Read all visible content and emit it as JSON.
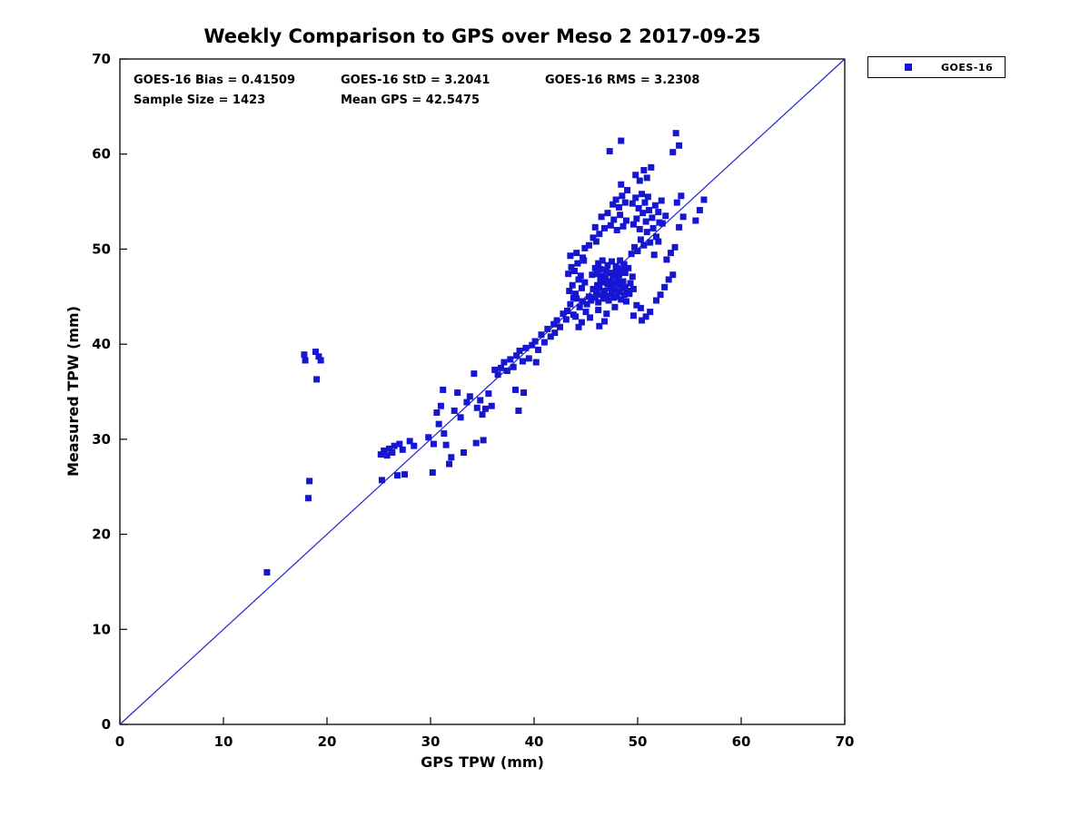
{
  "figure": {
    "background": "#ffffff",
    "text_color": "#000000"
  },
  "chart_data": {
    "type": "scatter",
    "title": "Weekly Comparison to GPS over Meso 2 2017-09-25",
    "xlabel": "GPS TPW (mm)",
    "ylabel": "Measured TPW (mm)",
    "xlim": [
      0,
      70
    ],
    "ylim": [
      0,
      70
    ],
    "xticks": [
      0,
      10,
      20,
      30,
      40,
      50,
      60,
      70
    ],
    "yticks": [
      0,
      10,
      20,
      30,
      40,
      50,
      60,
      70
    ],
    "grid": false,
    "legend": {
      "position": "top-right-outside",
      "entries": [
        {
          "label": "GOES-16",
          "marker": "square",
          "color": "#1616d2"
        }
      ]
    },
    "annotations": {
      "bias": "GOES-16 Bias = 0.41509",
      "std": "GOES-16 StD = 3.2041",
      "rms": "GOES-16 RMS = 3.2308",
      "sample_size": "Sample Size = 1423",
      "mean_gps": "Mean GPS = 42.5475"
    },
    "identity_line": {
      "from": [
        0,
        0
      ],
      "to": [
        70,
        70
      ],
      "color": "#2222cc",
      "width": 1.2
    },
    "marker": {
      "shape": "square",
      "size": 7,
      "color": "#1616d2"
    },
    "series": [
      {
        "name": "GOES-16",
        "points": [
          [
            14.2,
            16.0
          ],
          [
            17.8,
            38.9
          ],
          [
            17.9,
            38.3
          ],
          [
            18.9,
            39.2
          ],
          [
            19.2,
            38.7
          ],
          [
            19.4,
            38.3
          ],
          [
            19.0,
            36.3
          ],
          [
            18.3,
            25.6
          ],
          [
            18.2,
            23.8
          ],
          [
            25.2,
            28.4
          ],
          [
            25.5,
            28.8
          ],
          [
            25.8,
            28.3
          ],
          [
            26.0,
            29.0
          ],
          [
            26.3,
            28.6
          ],
          [
            26.5,
            29.3
          ],
          [
            27.0,
            29.5
          ],
          [
            27.3,
            28.9
          ],
          [
            26.8,
            26.2
          ],
          [
            27.5,
            26.3
          ],
          [
            25.3,
            25.7
          ],
          [
            28.0,
            29.8
          ],
          [
            28.4,
            29.3
          ],
          [
            29.8,
            30.2
          ],
          [
            30.3,
            29.5
          ],
          [
            30.2,
            26.5
          ],
          [
            30.6,
            32.8
          ],
          [
            31.0,
            33.5
          ],
          [
            31.3,
            30.6
          ],
          [
            31.5,
            29.4
          ],
          [
            31.8,
            27.4
          ],
          [
            32.0,
            28.1
          ],
          [
            32.3,
            33.0
          ],
          [
            32.6,
            34.9
          ],
          [
            32.9,
            32.3
          ],
          [
            33.2,
            28.6
          ],
          [
            33.5,
            33.9
          ],
          [
            33.8,
            34.5
          ],
          [
            31.2,
            35.2
          ],
          [
            30.8,
            31.6
          ],
          [
            34.2,
            36.9
          ],
          [
            34.5,
            33.3
          ],
          [
            34.8,
            34.1
          ],
          [
            35.0,
            32.6
          ],
          [
            35.3,
            33.2
          ],
          [
            35.6,
            34.8
          ],
          [
            35.9,
            33.5
          ],
          [
            36.2,
            37.3
          ],
          [
            36.5,
            36.8
          ],
          [
            36.8,
            37.5
          ],
          [
            37.1,
            38.1
          ],
          [
            37.4,
            37.2
          ],
          [
            37.7,
            38.4
          ],
          [
            38.0,
            37.6
          ],
          [
            34.4,
            29.6
          ],
          [
            35.1,
            29.9
          ],
          [
            38.3,
            38.8
          ],
          [
            38.6,
            39.3
          ],
          [
            38.9,
            38.2
          ],
          [
            39.2,
            39.6
          ],
          [
            39.5,
            38.5
          ],
          [
            39.8,
            39.9
          ],
          [
            40.1,
            40.3
          ],
          [
            40.4,
            39.4
          ],
          [
            40.7,
            41.0
          ],
          [
            41.0,
            40.2
          ],
          [
            41.3,
            41.6
          ],
          [
            41.6,
            40.8
          ],
          [
            41.9,
            42.1
          ],
          [
            38.5,
            33.0
          ],
          [
            38.2,
            35.2
          ],
          [
            39.0,
            34.9
          ],
          [
            40.2,
            38.1
          ],
          [
            42.0,
            41.2
          ],
          [
            42.2,
            42.5
          ],
          [
            42.5,
            41.8
          ],
          [
            42.8,
            43.2
          ],
          [
            45.1,
            44.2
          ],
          [
            45.3,
            45.0
          ],
          [
            45.5,
            44.6
          ],
          [
            45.7,
            45.8
          ],
          [
            45.9,
            44.9
          ],
          [
            46.0,
            45.5
          ],
          [
            46.1,
            46.2
          ],
          [
            46.2,
            44.4
          ],
          [
            46.3,
            45.9
          ],
          [
            46.4,
            46.8
          ],
          [
            46.5,
            45.2
          ],
          [
            46.6,
            46.5
          ],
          [
            46.7,
            44.8
          ],
          [
            46.8,
            45.6
          ],
          [
            46.9,
            46.9
          ],
          [
            47.0,
            45.1
          ],
          [
            47.1,
            46.3
          ],
          [
            47.2,
            44.6
          ],
          [
            47.3,
            45.9
          ],
          [
            47.4,
            46.6
          ],
          [
            47.5,
            45.3
          ],
          [
            47.6,
            46.1
          ],
          [
            47.7,
            44.9
          ],
          [
            47.8,
            45.7
          ],
          [
            47.9,
            46.4
          ],
          [
            48.0,
            45.0
          ],
          [
            48.1,
            46.7
          ],
          [
            48.2,
            45.5
          ],
          [
            48.3,
            46.2
          ],
          [
            48.4,
            44.7
          ],
          [
            48.5,
            45.9
          ],
          [
            48.6,
            46.6
          ],
          [
            48.7,
            45.2
          ],
          [
            48.8,
            46.0
          ],
          [
            48.9,
            44.5
          ],
          [
            49.0,
            45.6
          ],
          [
            46.1,
            47.4
          ],
          [
            46.4,
            47.9
          ],
          [
            46.7,
            47.2
          ],
          [
            47.0,
            47.8
          ],
          [
            47.3,
            47.5
          ],
          [
            47.6,
            47.1
          ],
          [
            47.9,
            47.7
          ],
          [
            48.2,
            47.3
          ],
          [
            48.5,
            47.9
          ],
          [
            48.8,
            47.5
          ],
          [
            45.6,
            47.3
          ],
          [
            45.9,
            48.0
          ],
          [
            46.2,
            48.5
          ],
          [
            46.6,
            48.8
          ],
          [
            47.1,
            48.3
          ],
          [
            47.5,
            48.7
          ],
          [
            47.9,
            48.2
          ],
          [
            48.3,
            48.8
          ],
          [
            48.7,
            48.4
          ],
          [
            49.1,
            48.0
          ],
          [
            49.3,
            46.4
          ],
          [
            49.5,
            47.1
          ],
          [
            49.2,
            45.3
          ],
          [
            49.6,
            45.8
          ],
          [
            49.4,
            49.5
          ],
          [
            49.7,
            50.2
          ],
          [
            50.0,
            49.8
          ],
          [
            50.3,
            51.0
          ],
          [
            50.6,
            50.4
          ],
          [
            50.9,
            51.8
          ],
          [
            51.2,
            50.7
          ],
          [
            51.5,
            52.2
          ],
          [
            51.8,
            51.3
          ],
          [
            52.1,
            52.8
          ],
          [
            49.6,
            52.6
          ],
          [
            49.9,
            53.2
          ],
          [
            50.2,
            52.1
          ],
          [
            50.5,
            53.8
          ],
          [
            50.8,
            52.9
          ],
          [
            51.1,
            54.1
          ],
          [
            51.4,
            53.3
          ],
          [
            51.7,
            54.6
          ],
          [
            52.0,
            53.9
          ],
          [
            52.3,
            55.1
          ],
          [
            49.5,
            54.8
          ],
          [
            49.8,
            55.4
          ],
          [
            50.1,
            54.3
          ],
          [
            50.4,
            55.8
          ],
          [
            50.7,
            54.9
          ],
          [
            51.0,
            55.5
          ],
          [
            48.9,
            53.0
          ],
          [
            48.6,
            52.4
          ],
          [
            48.3,
            53.6
          ],
          [
            48.0,
            52.0
          ],
          [
            47.7,
            53.1
          ],
          [
            47.4,
            52.5
          ],
          [
            47.1,
            53.8
          ],
          [
            46.8,
            52.2
          ],
          [
            46.5,
            53.4
          ],
          [
            48.8,
            54.9
          ],
          [
            48.5,
            55.6
          ],
          [
            48.2,
            54.4
          ],
          [
            47.9,
            55.2
          ],
          [
            47.6,
            54.7
          ],
          [
            49.0,
            56.2
          ],
          [
            48.4,
            56.8
          ],
          [
            50.2,
            57.2
          ],
          [
            49.8,
            57.8
          ],
          [
            50.6,
            58.3
          ],
          [
            51.3,
            58.6
          ],
          [
            50.9,
            57.5
          ],
          [
            43.2,
            43.5
          ],
          [
            43.5,
            44.2
          ],
          [
            43.8,
            43.1
          ],
          [
            44.1,
            44.8
          ],
          [
            44.4,
            43.9
          ],
          [
            44.7,
            44.5
          ],
          [
            43.4,
            45.6
          ],
          [
            43.7,
            46.2
          ],
          [
            44.0,
            45.3
          ],
          [
            44.3,
            46.8
          ],
          [
            44.6,
            45.9
          ],
          [
            44.9,
            46.5
          ],
          [
            43.3,
            47.4
          ],
          [
            43.6,
            48.1
          ],
          [
            43.9,
            47.7
          ],
          [
            44.2,
            48.5
          ],
          [
            44.5,
            47.2
          ],
          [
            44.8,
            48.8
          ],
          [
            43.1,
            42.6
          ],
          [
            44.0,
            42.9
          ],
          [
            44.6,
            42.3
          ],
          [
            45.0,
            43.4
          ],
          [
            43.5,
            49.3
          ],
          [
            44.1,
            49.6
          ],
          [
            44.7,
            49.1
          ],
          [
            43.8,
            44.9
          ],
          [
            50.8,
            42.9
          ],
          [
            51.2,
            43.4
          ],
          [
            50.4,
            42.5
          ],
          [
            51.8,
            44.6
          ],
          [
            52.2,
            45.2
          ],
          [
            52.6,
            46.0
          ],
          [
            53.0,
            46.8
          ],
          [
            53.4,
            47.3
          ],
          [
            52.8,
            48.9
          ],
          [
            53.2,
            49.6
          ],
          [
            53.6,
            50.2
          ],
          [
            54.0,
            52.3
          ],
          [
            54.4,
            53.4
          ],
          [
            53.8,
            54.9
          ],
          [
            54.2,
            55.6
          ],
          [
            52.4,
            52.7
          ],
          [
            52.7,
            53.5
          ],
          [
            52.0,
            50.8
          ],
          [
            51.6,
            49.4
          ],
          [
            49.9,
            44.1
          ],
          [
            50.3,
            43.8
          ],
          [
            49.6,
            43.0
          ],
          [
            46.3,
            41.9
          ],
          [
            55.6,
            53.0
          ],
          [
            56.4,
            55.2
          ],
          [
            56.0,
            54.1
          ],
          [
            47.3,
            60.3
          ],
          [
            48.4,
            61.4
          ],
          [
            53.4,
            60.2
          ],
          [
            53.7,
            62.2
          ],
          [
            54.0,
            60.9
          ],
          [
            45.3,
            50.4
          ],
          [
            45.7,
            51.2
          ],
          [
            46.0,
            50.8
          ],
          [
            46.3,
            51.6
          ],
          [
            45.9,
            52.3
          ],
          [
            44.9,
            50.1
          ],
          [
            46.2,
            43.6
          ],
          [
            47.0,
            43.2
          ],
          [
            47.8,
            43.9
          ],
          [
            45.4,
            42.8
          ],
          [
            46.8,
            42.4
          ],
          [
            44.3,
            41.8
          ]
        ]
      }
    ]
  }
}
